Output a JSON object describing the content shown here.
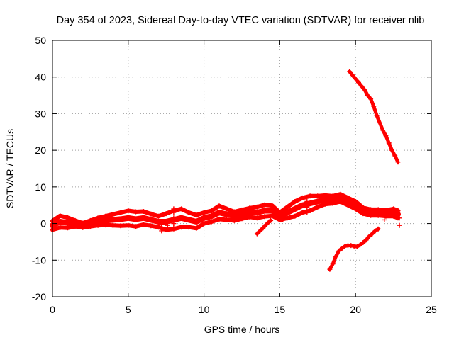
{
  "chart_data": {
    "type": "scatter",
    "title": "Day 354 of 2023, Sidereal Day-to-day VTEC variation (SDTVAR) for receiver nlib",
    "xlabel": "GPS time / hours",
    "ylabel": "SDTVAR / TECUs",
    "xlim": [
      0,
      25
    ],
    "ylim": [
      -20,
      50
    ],
    "xticks": [
      0,
      5,
      10,
      15,
      20,
      25
    ],
    "yticks": [
      -20,
      -10,
      0,
      10,
      20,
      30,
      40,
      50
    ],
    "grid": true,
    "legend": "none",
    "marker": "plus",
    "series_color": "#ff0000",
    "series": [
      {
        "name": "main-band",
        "x": [
          0,
          0.5,
          1,
          1.5,
          2,
          2.5,
          3,
          3.5,
          4,
          4.5,
          5,
          5.5,
          6,
          6.5,
          7,
          7.5,
          8,
          8.5,
          9,
          9.5,
          10,
          10.5,
          11,
          11.5,
          12,
          12.5,
          13,
          13.5,
          14,
          14.5,
          15,
          15.5,
          16,
          16.5,
          17,
          17.5,
          18,
          18.5,
          19,
          19.5,
          20,
          20.5,
          21,
          21.5,
          22,
          22.5,
          22.8
        ],
        "y": [
          -0.5,
          0.5,
          0.2,
          0,
          -0.5,
          0,
          0.5,
          0.8,
          1,
          1.2,
          1.5,
          1.2,
          1.5,
          1,
          0.5,
          0.5,
          1,
          1.5,
          1,
          0.5,
          1.5,
          2,
          3,
          2.5,
          2,
          2.5,
          3,
          3,
          3.5,
          3.5,
          2,
          3,
          4,
          5,
          5.5,
          6,
          6.5,
          6.5,
          7,
          6,
          5,
          3.5,
          3,
          3,
          2.8,
          3,
          2.5
        ],
        "spread": [
          1.2,
          1.6,
          1.4,
          0.8,
          0.6,
          0.8,
          1,
          1.2,
          1.5,
          1.8,
          2,
          2,
          1.8,
          1.6,
          1.5,
          2.2,
          2.5,
          2.5,
          2,
          1.8,
          1.5,
          1.5,
          1.8,
          1.5,
          1.2,
          1.2,
          1.2,
          1.5,
          1.6,
          1.4,
          1,
          1.5,
          2,
          2,
          2,
          1.5,
          1.2,
          1,
          1,
          1,
          1,
          0.8,
          0.8,
          0.8,
          0.8,
          1,
          1
        ]
      },
      {
        "name": "upper-descending",
        "x": [
          19.6,
          19.8,
          20,
          20.2,
          20.4,
          20.6,
          20.8,
          21,
          21.2,
          21.4,
          21.6,
          21.8,
          22,
          22.2,
          22.4,
          22.6,
          22.8
        ],
        "y": [
          41.5,
          40.5,
          39.5,
          38.5,
          37.5,
          36.5,
          35,
          34,
          32,
          29.5,
          27.5,
          25.5,
          24,
          22,
          20,
          18.5,
          16.8
        ]
      },
      {
        "name": "lower-rising",
        "x": [
          18.3,
          18.5,
          18.7,
          18.9,
          19.1,
          19.3,
          19.5,
          19.7,
          19.9,
          20.1,
          20.3,
          20.5,
          20.7,
          20.9,
          21.1,
          21.3,
          21.5
        ],
        "y": [
          -12.5,
          -11,
          -9,
          -7.5,
          -6.8,
          -6.2,
          -6,
          -6,
          -6.2,
          -6.3,
          -5.8,
          -5.2,
          -4.5,
          -3.5,
          -2.8,
          -2,
          -1.5
        ]
      },
      {
        "name": "isolated-segment",
        "x": [
          13.5,
          13.7,
          13.9,
          14.1,
          14.3,
          14.4
        ],
        "y": [
          -2.8,
          -2,
          -1.2,
          -0.3,
          0.5,
          0.8
        ]
      },
      {
        "name": "vertical-marks",
        "x": [
          7.2,
          7.2,
          7.2,
          7.6,
          7.6,
          7.6,
          8,
          8,
          8,
          8,
          8,
          15.2,
          15.2,
          15.2,
          16.8,
          16.8,
          16.8,
          21.9,
          21.9,
          21.9,
          22.9,
          22.9
        ],
        "y": [
          -2,
          -1,
          0,
          -1.5,
          -0.5,
          0.5,
          -1,
          0,
          1.5,
          3,
          4,
          1,
          2,
          3,
          3,
          4.5,
          6,
          1,
          2.5,
          3.5,
          -0.5,
          1.5
        ]
      }
    ]
  }
}
